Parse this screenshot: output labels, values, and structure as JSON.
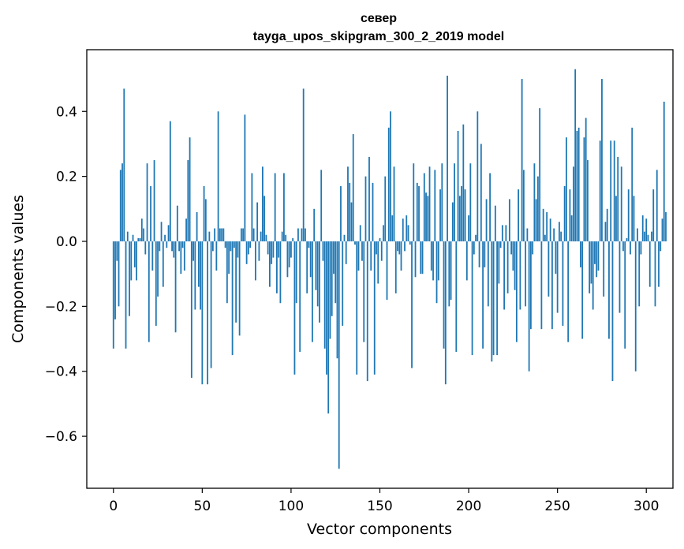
{
  "chart_data": {
    "type": "bar",
    "title": "север",
    "subtitle": "tayga_upos_skipgram_300_2_2019 model",
    "xlabel": "Vector components",
    "ylabel": "Components values",
    "xlim": [
      -15,
      315
    ],
    "ylim": [
      -0.76,
      0.59
    ],
    "xticks": [
      0,
      50,
      100,
      150,
      200,
      250,
      300
    ],
    "xtick_labels": [
      "0",
      "50",
      "100",
      "150",
      "200",
      "250",
      "300"
    ],
    "yticks": [
      -0.6,
      -0.4,
      -0.2,
      0.0,
      0.2,
      0.4
    ],
    "ytick_labels": [
      "−0.6",
      "−0.4",
      "−0.2",
      "0.0",
      "0.2",
      "0.4"
    ],
    "color": "#1f77b4",
    "values": [
      -0.33,
      -0.24,
      -0.06,
      -0.2,
      0.22,
      0.24,
      0.47,
      -0.33,
      0.03,
      -0.23,
      -0.12,
      0.02,
      -0.08,
      -0.12,
      0.01,
      0.01,
      0.07,
      0.04,
      -0.04,
      0.24,
      -0.31,
      0.17,
      -0.09,
      0.25,
      -0.26,
      -0.17,
      -0.03,
      0.06,
      -0.14,
      0.02,
      -0.02,
      0.05,
      0.37,
      -0.03,
      -0.05,
      -0.28,
      0.11,
      -0.03,
      -0.1,
      -0.02,
      -0.09,
      0.07,
      0.25,
      0.32,
      -0.42,
      -0.06,
      -0.21,
      0.09,
      -0.14,
      -0.21,
      -0.44,
      0.17,
      0.13,
      -0.44,
      0.03,
      -0.39,
      -0.03,
      0.04,
      -0.09,
      0.4,
      0.04,
      0.04,
      0.04,
      -0.02,
      -0.19,
      -0.1,
      -0.03,
      -0.35,
      -0.02,
      -0.25,
      -0.05,
      -0.29,
      0.04,
      0.04,
      0.39,
      -0.07,
      -0.04,
      -0.02,
      0.21,
      0.04,
      -0.12,
      0.12,
      -0.06,
      0.03,
      0.23,
      0.14,
      0.02,
      -0.04,
      -0.14,
      -0.07,
      -0.05,
      0.21,
      -0.16,
      -0.05,
      -0.19,
      0.03,
      0.21,
      0.02,
      -0.11,
      -0.08,
      -0.05,
      0.01,
      -0.41,
      -0.19,
      0.04,
      -0.34,
      0.04,
      0.47,
      0.04,
      -0.16,
      -0.02,
      -0.11,
      -0.31,
      0.1,
      -0.15,
      -0.2,
      -0.25,
      0.22,
      -0.06,
      -0.33,
      -0.41,
      -0.53,
      -0.3,
      -0.23,
      -0.1,
      -0.19,
      -0.36,
      -0.7,
      0.17,
      -0.26,
      0.02,
      -0.07,
      0.23,
      0.18,
      0.12,
      0.33,
      -0.01,
      -0.41,
      -0.09,
      0.05,
      -0.06,
      -0.31,
      0.2,
      -0.43,
      0.26,
      -0.09,
      0.18,
      -0.41,
      -0.04,
      -0.13,
      0.01,
      -0.06,
      0.05,
      0.2,
      -0.18,
      0.35,
      0.4,
      0.08,
      0.23,
      -0.16,
      -0.03,
      -0.04,
      -0.09,
      0.07,
      -0.03,
      0.08,
      0.05,
      -0.01,
      -0.39,
      0.24,
      -0.11,
      0.18,
      0.17,
      -0.1,
      -0.1,
      0.21,
      0.15,
      0.14,
      0.23,
      -0.09,
      -0.12,
      0.22,
      -0.19,
      -0.12,
      0.16,
      0.24,
      -0.33,
      -0.44,
      0.51,
      -0.2,
      -0.18,
      0.12,
      0.24,
      -0.34,
      0.34,
      0.14,
      0.17,
      0.36,
      0.16,
      -0.12,
      0.08,
      0.24,
      -0.35,
      -0.04,
      0.02,
      0.4,
      -0.08,
      0.3,
      -0.33,
      -0.08,
      0.13,
      -0.2,
      0.21,
      -0.37,
      -0.35,
      0.11,
      -0.35,
      -0.13,
      -0.02,
      0.05,
      -0.21,
      0.05,
      -0.16,
      0.13,
      -0.04,
      -0.09,
      -0.15,
      -0.31,
      0.16,
      -0.21,
      0.5,
      0.22,
      -0.2,
      0.04,
      -0.4,
      -0.27,
      -0.04,
      0.24,
      0.13,
      0.2,
      0.41,
      -0.27,
      0.1,
      0.02,
      0.09,
      -0.17,
      0.07,
      -0.27,
      0.04,
      -0.1,
      -0.22,
      0.06,
      0.03,
      -0.26,
      0.17,
      0.32,
      -0.31,
      0.16,
      0.08,
      0.23,
      0.53,
      0.34,
      0.35,
      -0.08,
      -0.3,
      0.32,
      0.38,
      0.25,
      -0.16,
      -0.13,
      -0.21,
      -0.07,
      -0.11,
      -0.09,
      0.31,
      0.5,
      -0.17,
      0.06,
      0.1,
      -0.3,
      0.31,
      -0.43,
      0.31,
      0.14,
      0.26,
      -0.22,
      0.23,
      -0.03,
      -0.33,
      0.01,
      0.16,
      -0.04,
      0.35,
      0.14,
      -0.4,
      0.04,
      -0.2,
      -0.04,
      0.08,
      0.03,
      0.07,
      0.02,
      -0.14,
      0.03,
      0.16,
      -0.2,
      0.22,
      -0.14,
      -0.03,
      0.07,
      0.43,
      0.09
    ]
  }
}
